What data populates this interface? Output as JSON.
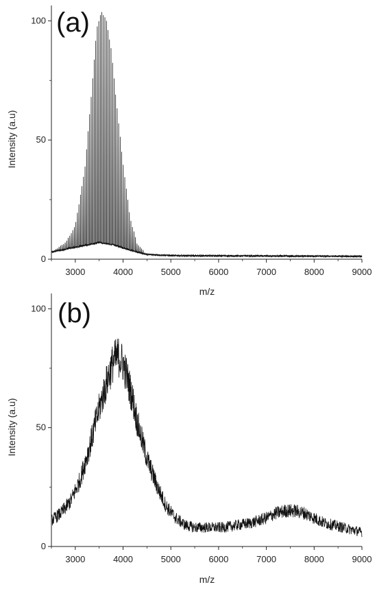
{
  "chart_data": [
    {
      "type": "line",
      "panel_label": "(a)",
      "xlabel": "m/z",
      "ylabel": "Intensity (a.u)",
      "xlim": [
        2500,
        9000
      ],
      "ylim": [
        0,
        105
      ],
      "xticks": [
        3000,
        4000,
        5000,
        6000,
        7000,
        8000,
        9000
      ],
      "yticks": [
        0,
        50,
        100
      ],
      "grid": false,
      "legend": "none",
      "series": [
        {
          "style": "comb",
          "peak_spacing": 32,
          "envelope_x": [
            2500,
            2800,
            3000,
            3200,
            3350,
            3450,
            3550,
            3650,
            3750,
            3850,
            4000,
            4150,
            4300,
            4500,
            5000,
            6000,
            7000,
            8000,
            9000
          ],
          "envelope_y": [
            3,
            7,
            14,
            38,
            72,
            97,
            104,
            100,
            88,
            68,
            40,
            17,
            6,
            2,
            1.5,
            1.3,
            1.2,
            1.2,
            1.2
          ],
          "baseline_x": [
            2500,
            3000,
            3500,
            3800,
            4200,
            4500,
            5000,
            9000
          ],
          "baseline_y": [
            3,
            5,
            7,
            6,
            3.5,
            2,
            1.5,
            1.2
          ]
        }
      ]
    },
    {
      "type": "line",
      "panel_label": "(b)",
      "xlabel": "m/z",
      "ylabel": "Intensity (a.u)",
      "xlim": [
        2500,
        9000
      ],
      "ylim": [
        0,
        105
      ],
      "xticks": [
        3000,
        4000,
        5000,
        6000,
        7000,
        8000,
        9000
      ],
      "yticks": [
        0,
        50,
        100
      ],
      "grid": false,
      "legend": "none",
      "series": [
        {
          "style": "noisy",
          "x": [
            2500,
            2700,
            2900,
            3100,
            3300,
            3500,
            3700,
            3800,
            3900,
            4000,
            4100,
            4200,
            4300,
            4500,
            4700,
            4900,
            5100,
            5300,
            5500,
            5800,
            6100,
            6400,
            6700,
            7000,
            7200,
            7400,
            7600,
            7800,
            8000,
            8200,
            8400,
            8600,
            8800,
            9000
          ],
          "y": [
            11,
            14,
            19,
            28,
            42,
            58,
            72,
            78,
            80,
            77,
            70,
            62,
            52,
            37,
            26,
            17,
            12,
            9,
            8,
            8,
            8,
            9,
            10,
            12,
            14,
            15,
            15,
            14,
            12,
            10,
            9,
            8,
            7,
            6
          ]
        }
      ]
    }
  ]
}
